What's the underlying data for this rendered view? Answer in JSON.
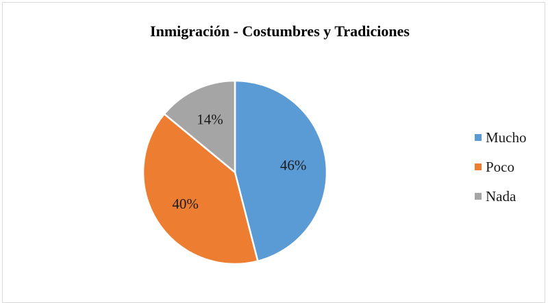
{
  "chart_data": {
    "type": "pie",
    "title": "Inmigración - Costumbres y Tradiciones",
    "categories": [
      "Mucho",
      "Poco",
      "Nada"
    ],
    "values": [
      46,
      40,
      14
    ],
    "labels": [
      "46%",
      "40%",
      "14%"
    ],
    "colors": [
      "#5b9bd5",
      "#ed7d31",
      "#a5a5a5"
    ],
    "legend_position": "right",
    "start_angle": "top, clockwise"
  }
}
